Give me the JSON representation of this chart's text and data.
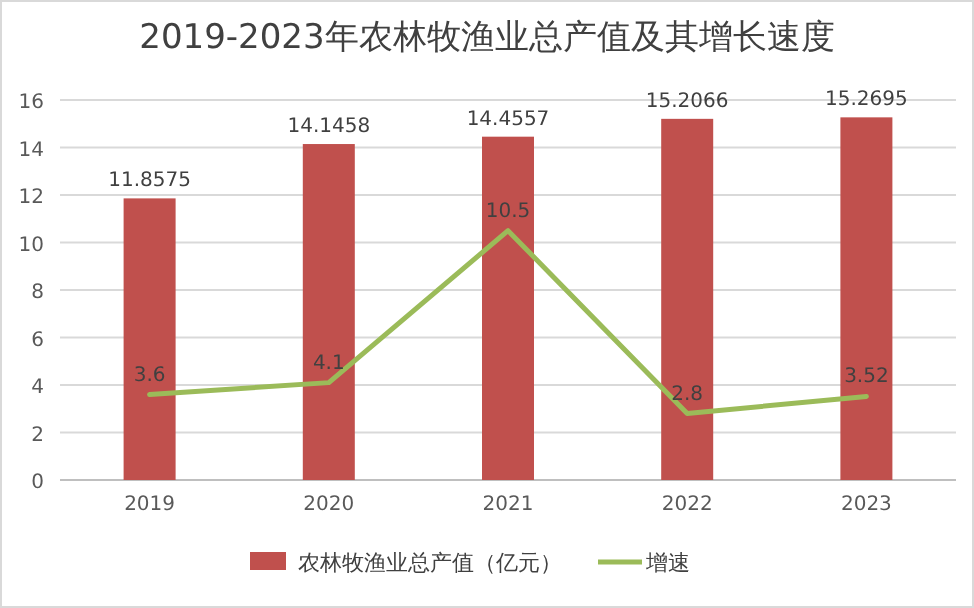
{
  "chart_data": {
    "type": "bar",
    "title": "2019-2023年农林牧渔业总产值及其增长速度",
    "categories": [
      "2019",
      "2020",
      "2021",
      "2022",
      "2023"
    ],
    "series": [
      {
        "name": "农林牧渔业总产值（亿元）",
        "color": "#c0504d",
        "values": [
          11.8575,
          14.1458,
          14.4557,
          15.2066,
          15.2695
        ]
      },
      {
        "name": "增速",
        "type": "line",
        "color": "#9bbb59",
        "values": [
          3.6,
          4.1,
          10.5,
          2.8,
          3.52
        ]
      }
    ],
    "ylim": [
      0,
      16
    ],
    "yticks": [
      0,
      2,
      4,
      6,
      8,
      10,
      12,
      14,
      16
    ],
    "grid": "y",
    "legend": "bottom",
    "data_labels": true
  }
}
